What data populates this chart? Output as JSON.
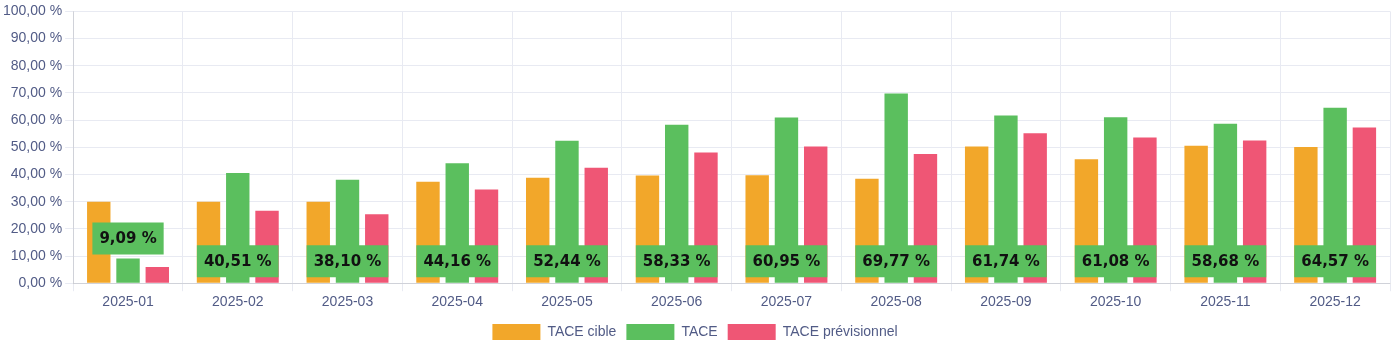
{
  "chart_data": {
    "type": "bar",
    "categories": [
      "2025-01",
      "2025-02",
      "2025-03",
      "2025-04",
      "2025-05",
      "2025-06",
      "2025-07",
      "2025-08",
      "2025-09",
      "2025-10",
      "2025-11",
      "2025-12"
    ],
    "series": [
      {
        "name": "TACE cible",
        "color": "#f2a72a",
        "values": [
          30,
          30,
          30,
          37.3,
          38.8,
          39.6,
          39.7,
          38.4,
          50.3,
          45.6,
          50.6,
          50.1
        ]
      },
      {
        "name": "TACE",
        "color": "#5bbf5e",
        "values": [
          9.09,
          40.51,
          38.1,
          44.16,
          52.44,
          58.33,
          60.95,
          69.77,
          61.74,
          61.08,
          58.68,
          64.57
        ],
        "value_labels": [
          "9,09 %",
          "40,51 %",
          "38,10 %",
          "44,16 %",
          "52,44 %",
          "58,33 %",
          "60,95 %",
          "69,77 %",
          "61,74 %",
          "61,08 %",
          "58,68 %",
          "64,57 %"
        ]
      },
      {
        "name": "TACE prévisionnel",
        "color": "#ef5675",
        "values": [
          6,
          26.7,
          25.4,
          34.5,
          42.5,
          48.1,
          50.3,
          47.5,
          55.2,
          53.6,
          52.5,
          57.3
        ]
      }
    ],
    "ylim": [
      0,
      100
    ],
    "yticks": [
      {
        "value": 0,
        "label": "0,00 %"
      },
      {
        "value": 10,
        "label": "10,00 %"
      },
      {
        "value": 20,
        "label": "20,00 %"
      },
      {
        "value": 30,
        "label": "30,00 %"
      },
      {
        "value": 40,
        "label": "40,00 %"
      },
      {
        "value": 50,
        "label": "50,00 %"
      },
      {
        "value": 60,
        "label": "60,00 %"
      },
      {
        "value": 70,
        "label": "70,00 %"
      },
      {
        "value": 80,
        "label": "80,00 %"
      },
      {
        "value": 90,
        "label": "90,00 %"
      },
      {
        "value": 100,
        "label": "100,00 %"
      }
    ],
    "grid": true,
    "legend": "bottom"
  }
}
